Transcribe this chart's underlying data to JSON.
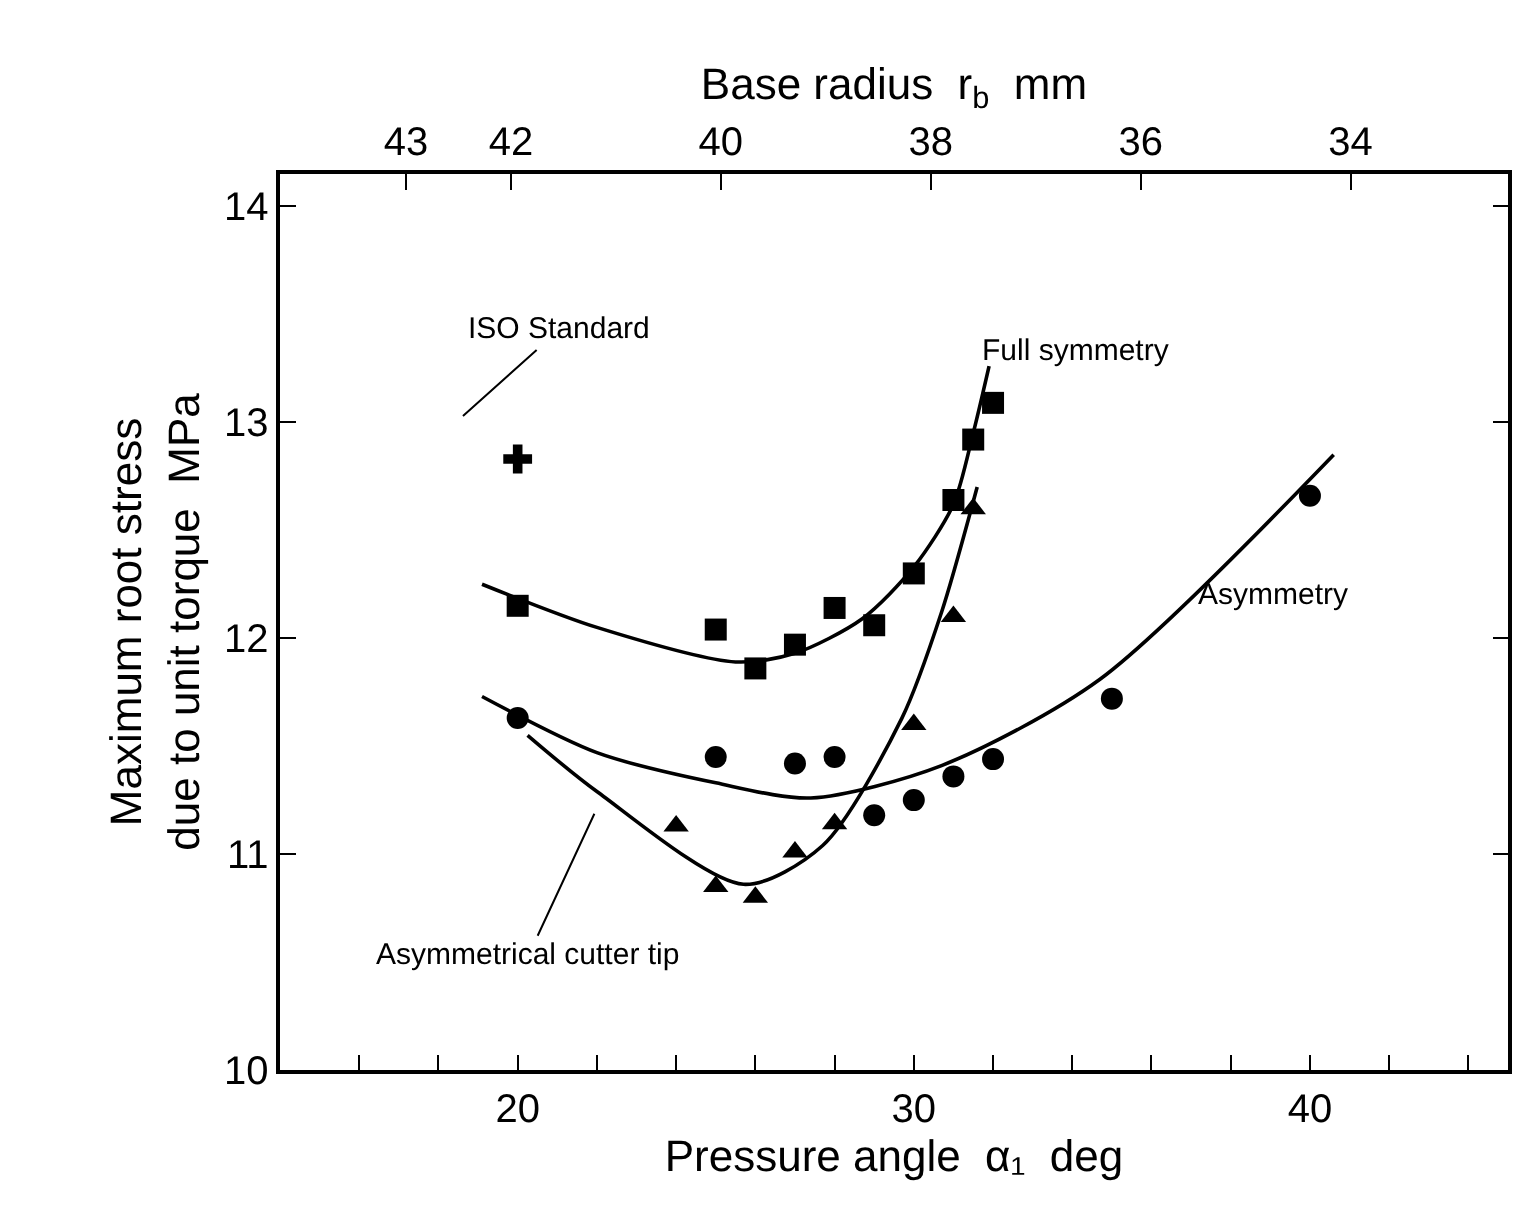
{
  "chart_data": {
    "type": "scatter",
    "xlabel": "Pressure angle  α₁  deg",
    "ylabel": "Maximum root stress\ndue to unit torque  MPa",
    "x2label": "Base radius  r$_{b}$  mm",
    "xlim": [
      14,
      45
    ],
    "ylim": [
      10,
      14.15
    ],
    "xticks": [
      {
        "value": 16,
        "label": null
      },
      {
        "value": 18,
        "label": null
      },
      20,
      {
        "value": 22,
        "label": null
      },
      {
        "value": 24,
        "label": null
      },
      {
        "value": 26,
        "label": null
      },
      {
        "value": 28,
        "label": null
      },
      30,
      {
        "value": 32,
        "label": null
      },
      {
        "value": 34,
        "label": null
      },
      {
        "value": 36,
        "label": null
      },
      {
        "value": 38,
        "label": null
      },
      40,
      {
        "value": 42,
        "label": null
      },
      {
        "value": 44,
        "label": null
      }
    ],
    "yticks": [
      10,
      11,
      12,
      13,
      14
    ],
    "x2lim": [
      44.2,
      32.5
    ],
    "x2ticks": [
      43,
      42,
      40,
      38,
      36,
      34
    ],
    "series": [
      {
        "marker": "square",
        "color": "#000000",
        "x": [
          20,
          25,
          26,
          27,
          28,
          29,
          30,
          31,
          31.5,
          32
        ],
        "values": [
          12.15,
          12.04,
          11.86,
          11.97,
          12.14,
          12.06,
          12.3,
          12.64,
          12.92,
          13.09
        ]
      },
      {
        "marker": "circle",
        "color": "#000000",
        "x": [
          20,
          25,
          27,
          28,
          29,
          30,
          31,
          32,
          35,
          40
        ],
        "values": [
          11.63,
          11.45,
          11.42,
          11.45,
          11.18,
          11.25,
          11.36,
          11.44,
          11.72,
          12.66
        ]
      },
      {
        "marker": "triangle",
        "color": "#000000",
        "x": [
          24,
          25,
          26,
          27,
          28,
          30,
          31,
          31.5
        ],
        "values": [
          11.13,
          10.85,
          10.8,
          11.01,
          11.14,
          11.6,
          12.1,
          12.6
        ]
      },
      {
        "marker": "cross",
        "color": "#000000",
        "x": [
          20
        ],
        "values": [
          12.83
        ]
      },
      {
        "type": "line",
        "marker": "none",
        "line_style": "solid",
        "color": "#000000",
        "x": [
          19.1,
          22,
          25.5,
          27,
          28.7,
          30,
          31,
          31.5,
          31.9
        ],
        "values": [
          12.25,
          12.05,
          11.89,
          11.93,
          12.09,
          12.33,
          12.62,
          12.95,
          13.26
        ]
      },
      {
        "type": "line",
        "marker": "none",
        "line_style": "solid",
        "color": "#000000",
        "x": [
          19.1,
          22,
          25,
          27.4,
          30.7,
          34.7,
          40.6
        ],
        "values": [
          11.73,
          11.47,
          11.33,
          11.26,
          11.41,
          11.81,
          12.85
        ]
      },
      {
        "type": "line",
        "marker": "none",
        "line_style": "solid",
        "color": "#000000",
        "x": [
          20.25,
          22,
          25.7,
          27.7,
          29.7,
          30.7,
          31.6
        ],
        "values": [
          11.55,
          11.29,
          10.86,
          11.04,
          11.63,
          12.12,
          12.7
        ]
      }
    ],
    "annotations": [
      "ISO Standard",
      "Full symmetry",
      "Asymmetry",
      "Asymmetrical cutter tip"
    ]
  }
}
